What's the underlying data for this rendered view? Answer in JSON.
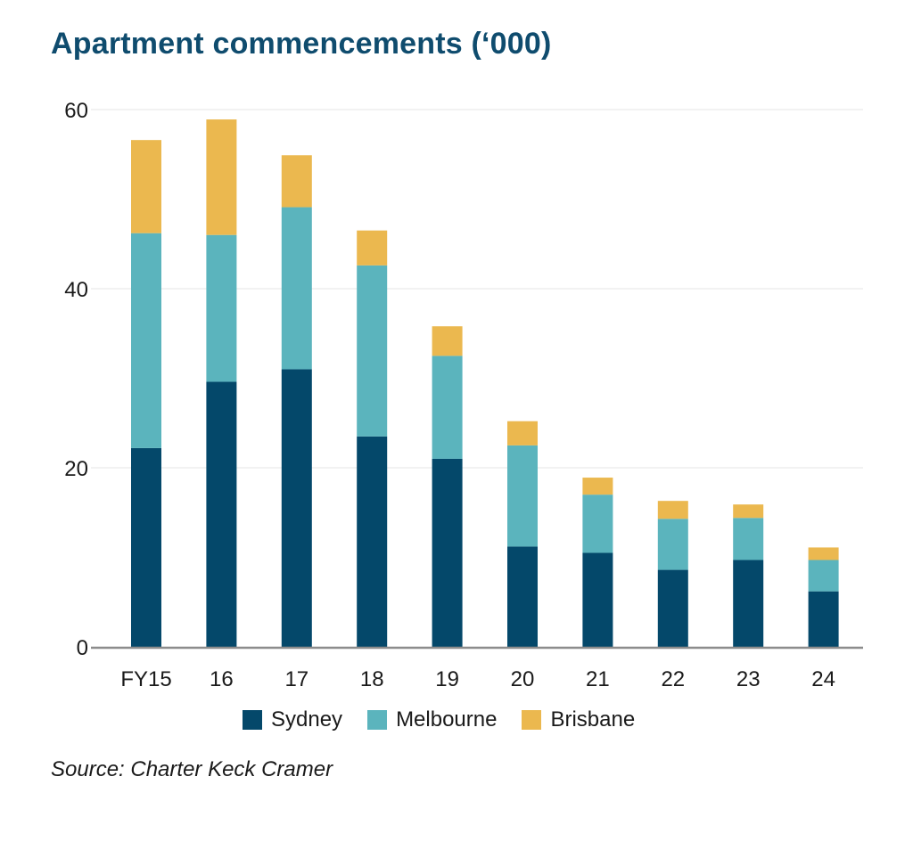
{
  "title": "Apartment commencements (‘000)",
  "source": "Source: Charter Keck Cramer",
  "colors": {
    "sydney": "#04486a",
    "melbourne": "#5bb4bd",
    "brisbane": "#ebb84f",
    "grid": "#e6e6e6",
    "axis": "#8c8c8c"
  },
  "chart_data": {
    "type": "bar",
    "stacked": true,
    "categories": [
      "FY15",
      "16",
      "17",
      "18",
      "19",
      "20",
      "21",
      "22",
      "23",
      "24"
    ],
    "series": [
      {
        "name": "Sydney",
        "values": [
          22.2,
          29.6,
          31.0,
          23.5,
          21.0,
          11.2,
          10.5,
          8.6,
          9.7,
          6.2
        ]
      },
      {
        "name": "Melbourne",
        "values": [
          24.0,
          16.4,
          18.1,
          19.1,
          11.5,
          11.3,
          6.5,
          5.7,
          4.7,
          3.5
        ]
      },
      {
        "name": "Brisbane",
        "values": [
          10.4,
          12.9,
          5.8,
          3.9,
          3.3,
          2.7,
          1.9,
          2.0,
          1.5,
          1.4
        ]
      }
    ],
    "yticks": [
      0,
      20,
      40,
      60
    ],
    "ylim": [
      0,
      60
    ],
    "grid": true,
    "legend": "bottom"
  }
}
